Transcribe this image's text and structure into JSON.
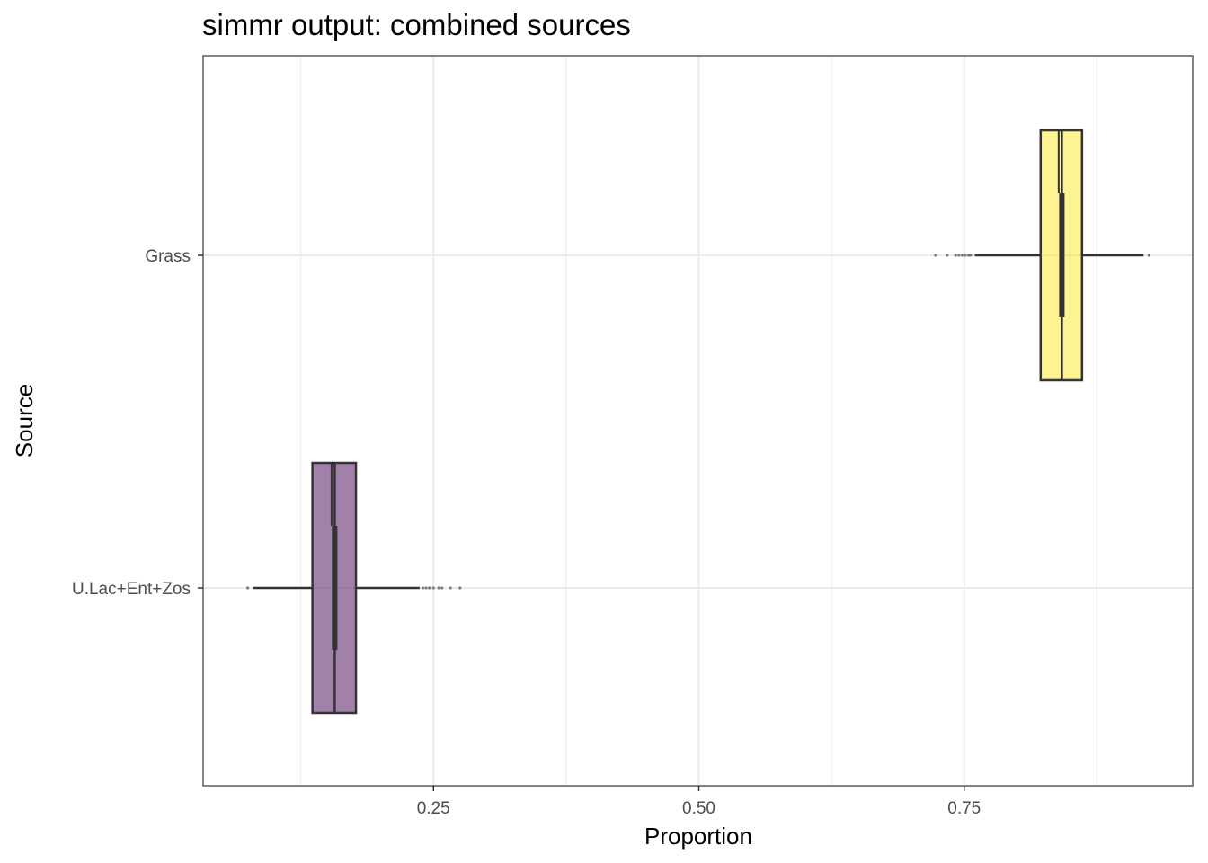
{
  "chart_data": {
    "type": "boxplot",
    "orientation": "horizontal",
    "title": "simmr output: combined sources",
    "xlabel": "Proportion",
    "ylabel": "Source",
    "xlim": [
      0.04,
      0.955
    ],
    "x_ticks": [
      0.25,
      0.5,
      0.75
    ],
    "x_tick_labels": [
      "0.25",
      "0.50",
      "0.75"
    ],
    "x_minor_ticks": [
      0.125,
      0.375,
      0.625,
      0.875
    ],
    "categories": [
      "Grass",
      "U.Lac+Ent+Zos"
    ],
    "grid": true,
    "legend": "none",
    "notch": true,
    "series": [
      {
        "name": "Grass",
        "color": "#fde725",
        "fill_opacity": 0.5,
        "whisker_low": 0.76,
        "q1": 0.822,
        "median": 0.842,
        "q3": 0.861,
        "whisker_high": 0.919,
        "notch_low": 0.839,
        "notch_high": 0.845,
        "outliers": [
          0.723,
          0.734,
          0.742,
          0.745,
          0.748,
          0.751,
          0.754,
          0.756,
          0.924
        ]
      },
      {
        "name": "U.Lac+Ent+Zos",
        "color": "#440154",
        "fill_opacity": 0.5,
        "whisker_low": 0.08,
        "q1": 0.136,
        "median": 0.157,
        "q3": 0.177,
        "whisker_high": 0.237,
        "notch_low": 0.154,
        "notch_high": 0.16,
        "outliers": [
          0.075,
          0.24,
          0.243,
          0.246,
          0.25,
          0.255,
          0.258,
          0.266,
          0.275
        ]
      }
    ]
  }
}
